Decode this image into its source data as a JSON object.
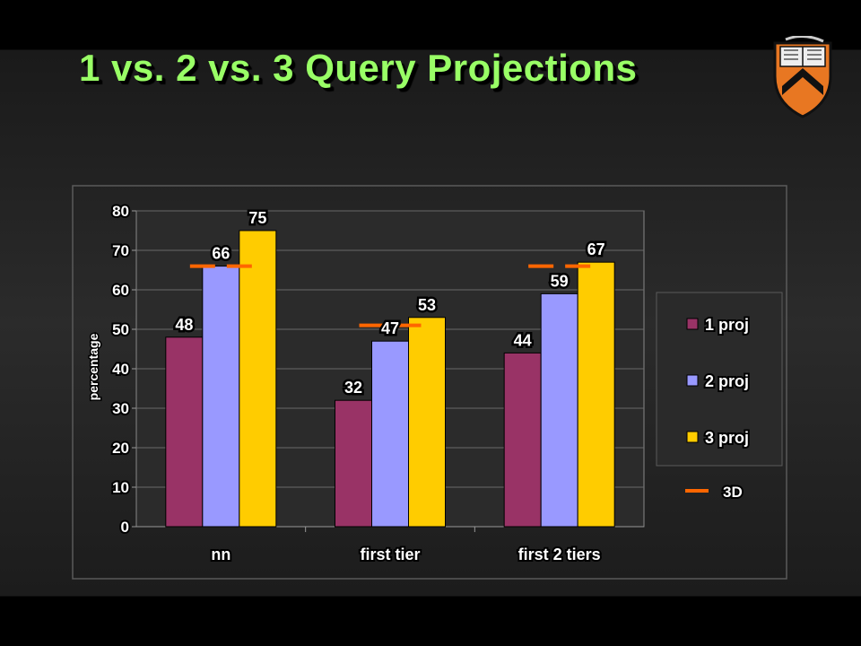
{
  "slide": {
    "title": "1 vs. 2 vs. 3 Query Projections"
  },
  "colors": {
    "title": "#99ff66",
    "series_1": "#993366",
    "series_2": "#9999ff",
    "series_3": "#ffcc00",
    "marker_3d": "#ff6600"
  },
  "chart_data": {
    "type": "bar",
    "categories": [
      "nn",
      "first tier",
      "first 2 tiers"
    ],
    "series": [
      {
        "name": "1 proj",
        "values": [
          48,
          32,
          44
        ],
        "color": "#993366"
      },
      {
        "name": "2 proj",
        "values": [
          66,
          47,
          59
        ],
        "color": "#9999ff"
      },
      {
        "name": "3 proj",
        "values": [
          75,
          53,
          67
        ],
        "color": "#ffcc00"
      }
    ],
    "reference": {
      "name": "3D",
      "values": [
        66,
        51,
        66
      ],
      "color": "#ff6600"
    },
    "ylabel": "percentage",
    "xlabel": "",
    "ylim": [
      0,
      80
    ],
    "yticks": [
      0,
      10,
      20,
      30,
      40,
      50,
      60,
      70,
      80
    ],
    "grid": true,
    "legend": "right",
    "data_labels": true
  }
}
